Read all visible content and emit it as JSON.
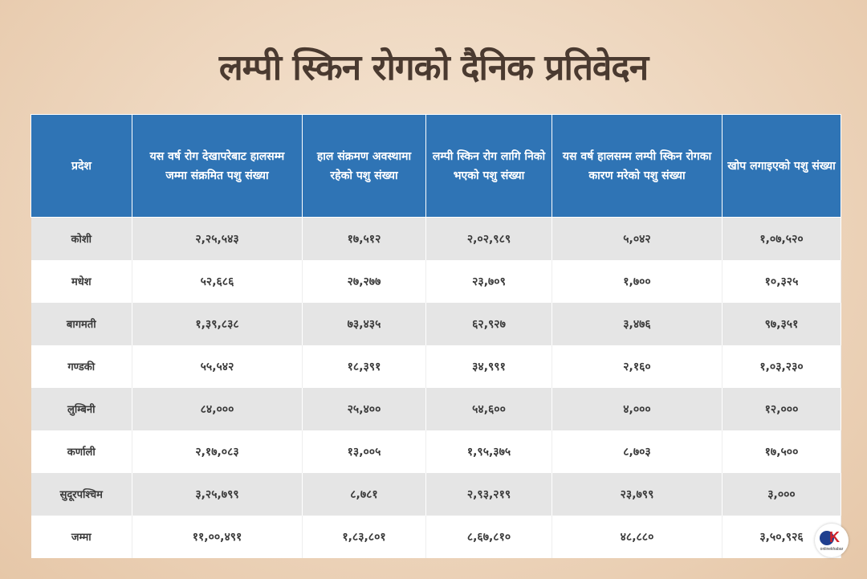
{
  "title": "लम्पी स्किन रोगको दैनिक प्रतिवेदन",
  "table": {
    "headers": [
      "प्रदेश",
      "यस वर्ष रोग देखापरेबाट हालसम्म जम्मा संक्रमित पशु संख्या",
      "हाल संक्रमण अवस्थामा रहेको पशु संख्या",
      "लम्पी स्किन रोग लागि निको भएको पशु संख्या",
      "यस वर्ष हालसम्म लम्पी स्किन रोगका कारण मरेको पशु संख्या",
      "खोप लगाइएको पशु संख्या"
    ],
    "rows": [
      [
        "कोशी",
        "२,२५,५४३",
        "१७,५१२",
        "२,०२,९८९",
        "५,०४२",
        "१,०७,५२०"
      ],
      [
        "मधेश",
        "५२,६८६",
        "२७,२७७",
        "२३,७०९",
        "१,७००",
        "१०,३२५"
      ],
      [
        "बागमती",
        "१,३९,८३८",
        "७३,४३५",
        "६२,९२७",
        "३,४७६",
        "९७,३५१"
      ],
      [
        "गण्डकी",
        "५५,५४२",
        "१८,३९१",
        "३४,९९१",
        "२,१६०",
        "१,०३,२३०"
      ],
      [
        "लुम्बिनी",
        "८४,०००",
        "२५,४००",
        "५४,६००",
        "४,०००",
        "१२,०००"
      ],
      [
        "कर्णाली",
        "२,१७,०८३",
        "१३,००५",
        "१,९५,३७५",
        "८,७०३",
        "१७,५००"
      ],
      [
        "सुदूरपश्चिम",
        "३,२५,७९९",
        "८,७८१",
        "२,९३,२१९",
        "२३,७९९",
        "३,०००"
      ],
      [
        "जम्मा",
        "११,००,४९१",
        "१,८३,८०१",
        "८,६७,८१०",
        "४८,८८०",
        "३,५०,९२६"
      ]
    ]
  },
  "logo": {
    "mark_o": "O",
    "mark_k": "K",
    "brand": "onlinekhabar"
  },
  "colors": {
    "header_bg": "#2f74b5",
    "title": "#4a3a30",
    "stripe": "#e5e5e5",
    "logo_blue": "#1f3f8f",
    "logo_red": "#d2232a"
  }
}
